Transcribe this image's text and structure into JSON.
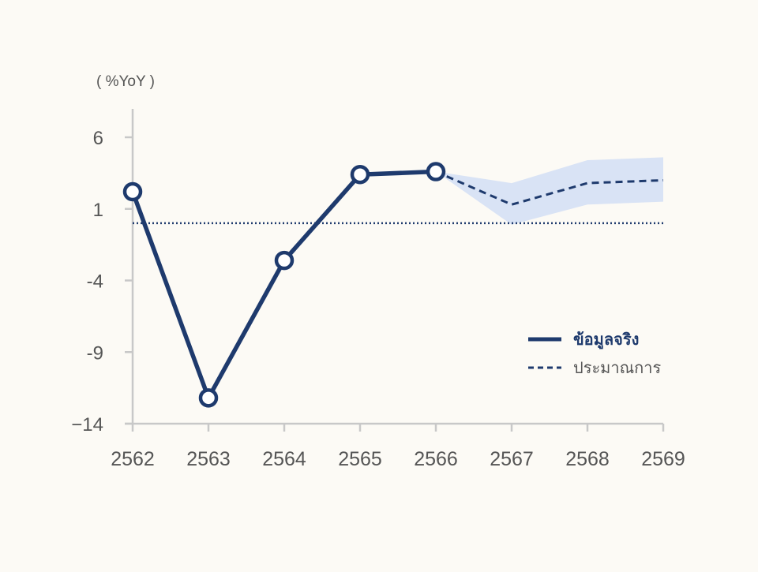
{
  "chart_data": {
    "type": "line",
    "unit_label": "( %YoY )",
    "x": [
      "2562",
      "2563",
      "2564",
      "2565",
      "2566",
      "2567",
      "2568",
      "2569"
    ],
    "ylim": [
      -14,
      8
    ],
    "yticks": [
      6,
      1,
      -4,
      -9,
      -14
    ],
    "ytick_labels": [
      "6",
      "1",
      "-4",
      "-9",
      "−14"
    ],
    "reference_line": 0,
    "series": [
      {
        "name": "ข้อมูลจริง",
        "style": "solid",
        "x": [
          "2562",
          "2563",
          "2564",
          "2565",
          "2566"
        ],
        "values": [
          2.2,
          -12.2,
          -2.6,
          3.4,
          3.6
        ]
      },
      {
        "name": "ประมาณการ",
        "style": "dashed",
        "x": [
          "2566",
          "2567",
          "2568",
          "2569"
        ],
        "values": [
          3.6,
          1.3,
          2.8,
          3.0
        ]
      }
    ],
    "forecast_band": {
      "x": [
        "2566",
        "2567",
        "2568",
        "2569"
      ],
      "upper": [
        3.6,
        2.8,
        4.4,
        4.6
      ],
      "lower": [
        3.6,
        -0.1,
        1.3,
        1.5
      ]
    },
    "legend_position": "right",
    "grid": false
  },
  "colors": {
    "background": "#fcfaf5",
    "line": "#1e3a6d",
    "band": "#d9e3f5",
    "axis": "#c8c8c8",
    "tick_text": "#555555",
    "marker_fill": "#ffffff"
  }
}
